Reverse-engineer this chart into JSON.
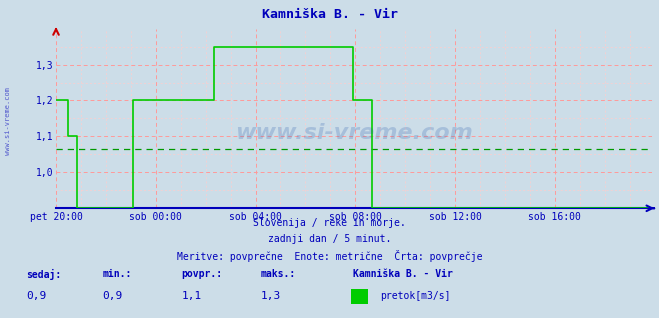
{
  "title": "Kamniška B. - Vir",
  "bg_color": "#ccdde8",
  "plot_bg_color": "#ccdde8",
  "line_color": "#00cc00",
  "avg_line_color": "#009900",
  "x_axis_color": "#0000bb",
  "y_axis_color": "#cc0000",
  "grid_color_major": "#ff9999",
  "grid_color_minor": "#ffcccc",
  "title_color": "#0000bb",
  "tick_label_color": "#0000bb",
  "footer_line1": "Slovenija / reke in morje.",
  "footer_line2": "zadnji dan / 5 minut.",
  "footer_line3": "Meritve: povprečne  Enote: metrične  Črta: povprečje",
  "stats_labels": [
    "sedaj:",
    "min.:",
    "povpr.:",
    "maks.:"
  ],
  "stats_values": [
    "0,9",
    "0,9",
    "1,1",
    "1,3"
  ],
  "legend_name": "Kamniška B. - Vir",
  "legend_unit": "pretok[m3/s]",
  "legend_color": "#00cc00",
  "ylim": [
    0.9,
    1.4
  ],
  "yticks": [
    1.0,
    1.1,
    1.2,
    1.3
  ],
  "avg_value": 1.065,
  "num_points": 288,
  "x_tick_labels": [
    "pet 20:00",
    "sob 00:00",
    "sob 04:00",
    "sob 08:00",
    "sob 12:00",
    "sob 16:00"
  ],
  "x_tick_positions": [
    0,
    48,
    96,
    144,
    192,
    240
  ],
  "total_points": 288,
  "watermark": "www.si-vreme.com",
  "watermark_color": "#2255aa",
  "side_watermark": "www.si-vreme.com"
}
